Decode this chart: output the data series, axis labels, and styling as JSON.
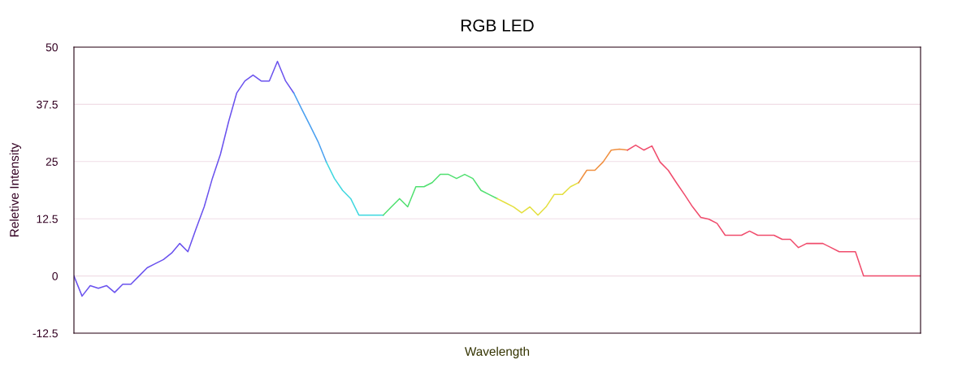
{
  "chart_data": {
    "type": "line",
    "title": "RGB LED",
    "xlabel": "Wavelength",
    "ylabel": "Reletive Intensity",
    "ylim": [
      -12.5,
      50
    ],
    "yticks": [
      -12.5,
      0,
      12.5,
      25,
      37.5,
      50
    ],
    "grid": "y",
    "marker": "none",
    "line_style": "solid",
    "tick_labels": "y",
    "categories": [
      null,
      null,
      null,
      null,
      null,
      null,
      null,
      null,
      null,
      null,
      null,
      null,
      null,
      null,
      null,
      null,
      null,
      null,
      null,
      null,
      null,
      null,
      null,
      null,
      null,
      null,
      null,
      null,
      null,
      null,
      null,
      null,
      null,
      null,
      null,
      null,
      null,
      null,
      null,
      null,
      null,
      null,
      null,
      null,
      null,
      null,
      null,
      null,
      null,
      null,
      null,
      null,
      null,
      null,
      null,
      null,
      null,
      null,
      null,
      null,
      null,
      null,
      null,
      null,
      null,
      null,
      null,
      null,
      null,
      null,
      null,
      null,
      null,
      null,
      null,
      null,
      null,
      null,
      null,
      null,
      null,
      null,
      null,
      null,
      null,
      null,
      null,
      null,
      null,
      null,
      null,
      null,
      null,
      null,
      null,
      null,
      null,
      null,
      null,
      null,
      null,
      null,
      null,
      null,
      null
    ],
    "series": [
      {
        "color": "#6a52ee",
        "values": [
          0,
          -4.4,
          -2.1,
          -2.7,
          -2.1,
          -3.6,
          -1.8,
          -1.8,
          0,
          1.8,
          2.7,
          3.6,
          5.0,
          7.1,
          5.3,
          10.3,
          15.1,
          21.3,
          26.6,
          33.7,
          40.0,
          42.6,
          43.9,
          42.6,
          42.6,
          46.9,
          42.6,
          40.0,
          null,
          null,
          null,
          null,
          null,
          null,
          null,
          null,
          null,
          null,
          null,
          null,
          null,
          null,
          null,
          null,
          null,
          null,
          null,
          null,
          null,
          null,
          null,
          null,
          null,
          null,
          null,
          null,
          null,
          null,
          null,
          null,
          null,
          null,
          null,
          null,
          null,
          null,
          null,
          null,
          null,
          null,
          null,
          null,
          null,
          null,
          null,
          null,
          null,
          null,
          null,
          null,
          null,
          null,
          null,
          null,
          null,
          null,
          null,
          null,
          null,
          null,
          null,
          null,
          null,
          null,
          null,
          null,
          null,
          null,
          null,
          null,
          null,
          null,
          null,
          null,
          null
        ]
      },
      {
        "color": "#4aa0f0",
        "values": [
          null,
          null,
          null,
          null,
          null,
          null,
          null,
          null,
          null,
          null,
          null,
          null,
          null,
          null,
          null,
          null,
          null,
          null,
          null,
          null,
          null,
          null,
          null,
          null,
          null,
          null,
          null,
          40.0,
          36.4,
          32.9,
          29.3,
          24.9,
          null,
          null,
          null,
          null,
          null,
          null,
          null,
          null,
          null,
          null,
          null,
          null,
          null,
          null,
          null,
          null,
          null,
          null,
          null,
          null,
          null,
          null,
          null,
          null,
          null,
          null,
          null,
          null,
          null,
          null,
          null,
          null,
          null,
          null,
          null,
          null,
          null,
          null,
          null,
          null,
          null,
          null,
          null,
          null,
          null,
          null,
          null,
          null,
          null,
          null,
          null,
          null,
          null,
          null,
          null,
          null,
          null,
          null,
          null,
          null,
          null,
          null,
          null,
          null,
          null,
          null,
          null,
          null,
          null,
          null,
          null,
          null,
          null
        ]
      },
      {
        "color": "#40d8e0",
        "values": [
          null,
          null,
          null,
          null,
          null,
          null,
          null,
          null,
          null,
          null,
          null,
          null,
          null,
          null,
          null,
          null,
          null,
          null,
          null,
          null,
          null,
          null,
          null,
          null,
          null,
          null,
          null,
          null,
          null,
          null,
          null,
          24.9,
          21.3,
          18.7,
          16.9,
          13.3,
          13.3,
          13.3,
          13.3,
          null,
          null,
          null,
          null,
          null,
          null,
          null,
          null,
          null,
          null,
          null,
          null,
          null,
          null,
          null,
          null,
          null,
          null,
          null,
          null,
          null,
          null,
          null,
          null,
          null,
          null,
          null,
          null,
          null,
          null,
          null,
          null,
          null,
          null,
          null,
          null,
          null,
          null,
          null,
          null,
          null,
          null,
          null,
          null,
          null,
          null,
          null,
          null,
          null,
          null,
          null,
          null,
          null,
          null,
          null,
          null,
          null,
          null,
          null,
          null,
          null,
          null,
          null,
          null,
          null,
          null
        ]
      },
      {
        "color": "#50e070",
        "values": [
          null,
          null,
          null,
          null,
          null,
          null,
          null,
          null,
          null,
          null,
          null,
          null,
          null,
          null,
          null,
          null,
          null,
          null,
          null,
          null,
          null,
          null,
          null,
          null,
          null,
          null,
          null,
          null,
          null,
          null,
          null,
          null,
          null,
          null,
          null,
          null,
          null,
          null,
          13.3,
          15.1,
          16.9,
          15.1,
          19.5,
          19.5,
          20.4,
          22.2,
          22.2,
          21.3,
          22.2,
          21.3,
          18.7,
          17.8,
          16.9,
          null,
          null,
          null,
          null,
          null,
          null,
          null,
          null,
          null,
          null,
          null,
          null,
          null,
          null,
          null,
          null,
          null,
          null,
          null,
          null,
          null,
          null,
          null,
          null,
          null,
          null,
          null,
          null,
          null,
          null,
          null,
          null,
          null,
          null,
          null,
          null,
          null,
          null,
          null,
          null,
          null,
          null,
          null,
          null,
          null,
          null,
          null,
          null,
          null,
          null,
          null,
          null
        ]
      },
      {
        "color": "#e4e040",
        "values": [
          null,
          null,
          null,
          null,
          null,
          null,
          null,
          null,
          null,
          null,
          null,
          null,
          null,
          null,
          null,
          null,
          null,
          null,
          null,
          null,
          null,
          null,
          null,
          null,
          null,
          null,
          null,
          null,
          null,
          null,
          null,
          null,
          null,
          null,
          null,
          null,
          null,
          null,
          null,
          null,
          null,
          null,
          null,
          null,
          null,
          null,
          null,
          null,
          null,
          null,
          null,
          null,
          16.9,
          16.0,
          15.1,
          13.8,
          15.1,
          13.3,
          15.1,
          17.8,
          17.8,
          19.5,
          20.4,
          null,
          null,
          null,
          null,
          null,
          null,
          null,
          null,
          null,
          null,
          null,
          null,
          null,
          null,
          null,
          null,
          null,
          null,
          null,
          null,
          null,
          null,
          null,
          null,
          null,
          null,
          null,
          null,
          null,
          null,
          null,
          null,
          null,
          null,
          null,
          null,
          null,
          null,
          null,
          null,
          null,
          null
        ]
      },
      {
        "color": "#f09040",
        "values": [
          null,
          null,
          null,
          null,
          null,
          null,
          null,
          null,
          null,
          null,
          null,
          null,
          null,
          null,
          null,
          null,
          null,
          null,
          null,
          null,
          null,
          null,
          null,
          null,
          null,
          null,
          null,
          null,
          null,
          null,
          null,
          null,
          null,
          null,
          null,
          null,
          null,
          null,
          null,
          null,
          null,
          null,
          null,
          null,
          null,
          null,
          null,
          null,
          null,
          null,
          null,
          null,
          null,
          null,
          null,
          null,
          null,
          null,
          null,
          null,
          null,
          null,
          20.4,
          23.1,
          23.1,
          24.9,
          27.5,
          27.7,
          27.5,
          null,
          null,
          null,
          null,
          null,
          null,
          null,
          null,
          null,
          null,
          null,
          null,
          null,
          null,
          null,
          null,
          null,
          null,
          null,
          null,
          null,
          null,
          null,
          null,
          null,
          null,
          null,
          null,
          null,
          null,
          null,
          null,
          null,
          null,
          null,
          null
        ]
      },
      {
        "color": "#f04c6c",
        "values": [
          null,
          null,
          null,
          null,
          null,
          null,
          null,
          null,
          null,
          null,
          null,
          null,
          null,
          null,
          null,
          null,
          null,
          null,
          null,
          null,
          null,
          null,
          null,
          null,
          null,
          null,
          null,
          null,
          null,
          null,
          null,
          null,
          null,
          null,
          null,
          null,
          null,
          null,
          null,
          null,
          null,
          null,
          null,
          null,
          null,
          null,
          null,
          null,
          null,
          null,
          null,
          null,
          null,
          null,
          null,
          null,
          null,
          null,
          null,
          null,
          null,
          null,
          null,
          null,
          null,
          null,
          null,
          null,
          27.5,
          28.6,
          27.5,
          28.4,
          24.9,
          23.1,
          20.4,
          17.8,
          15.1,
          12.8,
          12.4,
          11.5,
          8.9,
          8.9,
          8.9,
          9.8,
          8.9,
          8.9,
          8.9,
          8.0,
          8.0,
          6.2,
          7.1,
          7.1,
          7.1,
          6.2,
          5.3,
          5.3,
          5.3,
          0,
          0,
          0,
          0,
          0,
          0,
          0,
          0
        ]
      }
    ]
  }
}
